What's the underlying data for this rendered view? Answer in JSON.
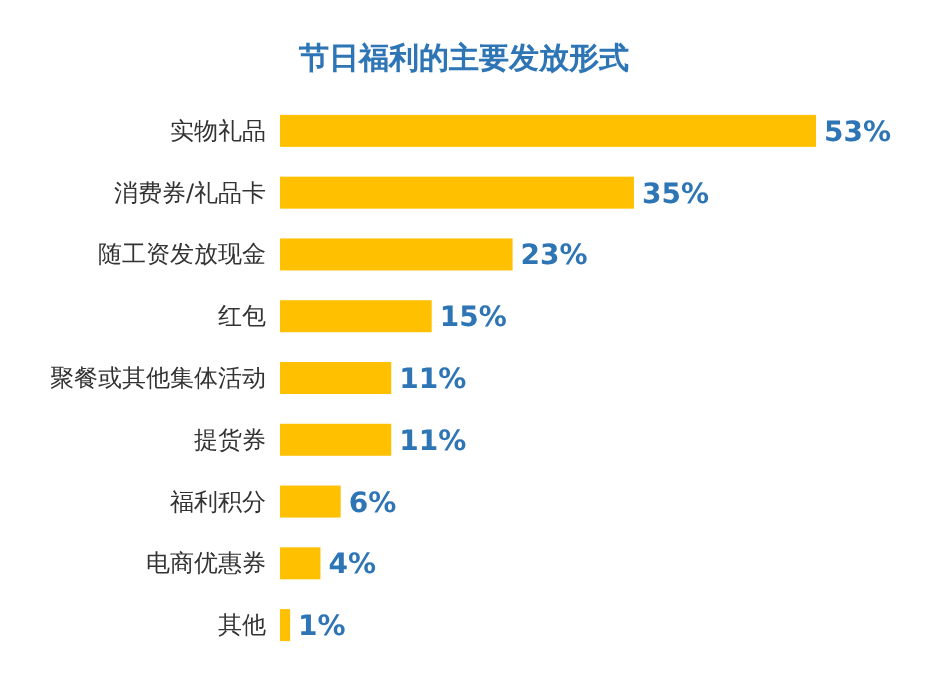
{
  "chart_data": {
    "type": "bar",
    "orientation": "horizontal",
    "title": "节日福利的主要发放形式",
    "color": "#ffc000",
    "categories": [
      "实物礼品",
      "消费券/礼品卡",
      "随工资发放现金",
      "红包",
      "聚餐或其他集体活动",
      "提货券",
      "福利积分",
      "电商优惠券",
      "其他"
    ],
    "values": [
      53,
      35,
      23,
      15,
      11,
      11,
      6,
      4,
      1
    ],
    "value_labels": [
      "53%",
      "35%",
      "23%",
      "15%",
      "11%",
      "11%",
      "6%",
      "4%",
      "1%"
    ]
  }
}
